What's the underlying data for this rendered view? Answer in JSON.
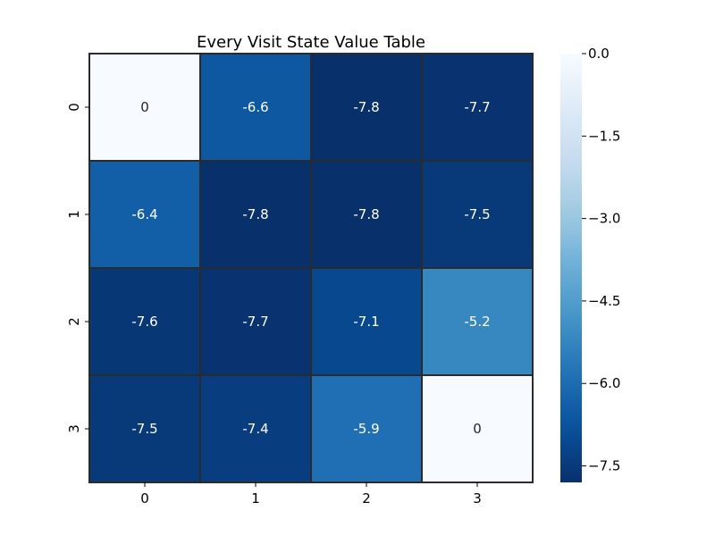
{
  "chart_data": {
    "type": "heatmap",
    "title": "Every Visit State Value Table",
    "xlabel": "",
    "ylabel": "",
    "x_categories": [
      "0",
      "1",
      "2",
      "3"
    ],
    "y_categories": [
      "0",
      "1",
      "2",
      "3"
    ],
    "values": [
      [
        0,
        -6.6,
        -7.8,
        -7.7
      ],
      [
        -6.4,
        -7.8,
        -7.8,
        -7.5
      ],
      [
        -7.6,
        -7.7,
        -7.1,
        -5.2
      ],
      [
        -7.5,
        -7.4,
        -5.9,
        0
      ]
    ],
    "cell_labels": [
      [
        "0",
        "-6.6",
        "-7.8",
        "-7.7"
      ],
      [
        "-6.4",
        "-7.8",
        "-7.8",
        "-7.5"
      ],
      [
        "-7.6",
        "-7.7",
        "-7.1",
        "-5.2"
      ],
      [
        "-7.5",
        "-7.4",
        "-5.9",
        "0"
      ]
    ],
    "colormap": "Blues_r",
    "color_range": [
      -7.8,
      0.0
    ],
    "colorbar_ticks": [
      0.0,
      -1.5,
      -3.0,
      -4.5,
      -6.0,
      -7.5
    ],
    "colorbar_tick_labels": [
      "0.0",
      "−1.5",
      "−3.0",
      "−4.5",
      "−6.0",
      "−7.5"
    ],
    "grid": true,
    "cell_border_color": "#2b2b2b"
  }
}
